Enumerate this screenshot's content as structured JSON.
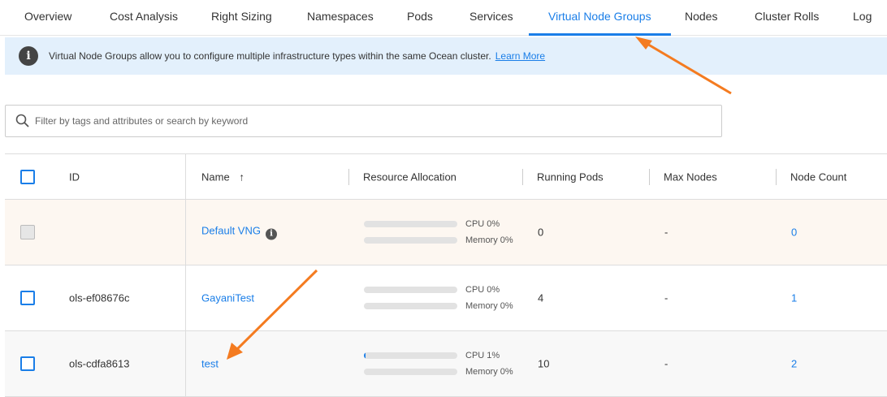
{
  "tabs": [
    "Overview",
    "Cost Analysis",
    "Right Sizing",
    "Namespaces",
    "Pods",
    "Services",
    "Virtual Node Groups",
    "Nodes",
    "Cluster Rolls",
    "Log"
  ],
  "active_tab": "Virtual Node Groups",
  "banner": {
    "text": "Virtual Node Groups allow you to configure multiple infrastructure types within the same Ocean cluster.",
    "link": "Learn More"
  },
  "search": {
    "placeholder": "Filter by tags and attributes or search by keyword"
  },
  "columns": {
    "id": "ID",
    "name": "Name",
    "sort_icon": "↑",
    "resource": "Resource Allocation",
    "pods": "Running Pods",
    "max": "Max Nodes",
    "count": "Node Count"
  },
  "rows": [
    {
      "id": "",
      "name": "Default VNG",
      "cpu": "CPU 0%",
      "mem": "Memory 0%",
      "cpu_pct": 0,
      "mem_pct": 0,
      "pods": "0",
      "max": "-",
      "count": "0",
      "disabled": true
    },
    {
      "id": "ols-ef08676c",
      "name": "GayaniTest",
      "cpu": "CPU 0%",
      "mem": "Memory 0%",
      "cpu_pct": 0,
      "mem_pct": 0,
      "pods": "4",
      "max": "-",
      "count": "1"
    },
    {
      "id": "ols-cdfa8613",
      "name": "test",
      "cpu": "CPU 1%",
      "mem": "Memory 0%",
      "cpu_pct": 1,
      "mem_pct": 0,
      "pods": "10",
      "max": "-",
      "count": "2"
    }
  ],
  "colors": {
    "accent": "#1a7ee8",
    "annotation_arrow": "#f47b20",
    "highlight_row": "#fdf7f1"
  }
}
